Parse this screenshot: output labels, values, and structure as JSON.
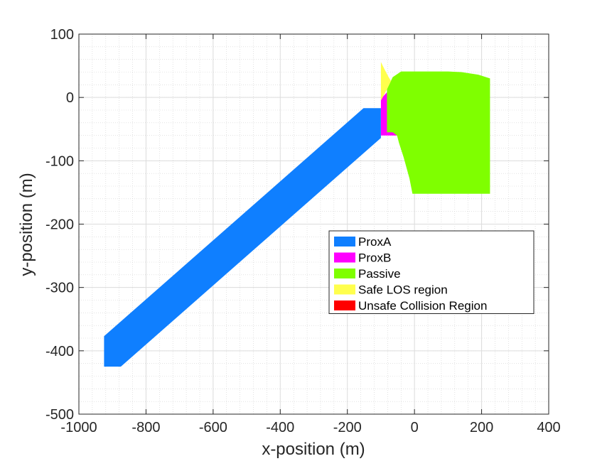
{
  "chart_data": {
    "type": "area",
    "xlabel": "x-position (m)",
    "ylabel": "y-position (m)",
    "xlim": [
      -1000,
      400
    ],
    "ylim": [
      -500,
      100
    ],
    "xticks": [
      -1000,
      -800,
      -600,
      -400,
      -200,
      0,
      200,
      400
    ],
    "yticks": [
      -500,
      -400,
      -300,
      -200,
      -100,
      0,
      100
    ],
    "xtick_labels": [
      "-1000",
      "-800",
      "-600",
      "-400",
      "-200",
      "0",
      "200",
      "400"
    ],
    "ytick_labels": [
      "-500",
      "-400",
      "-300",
      "-200",
      "-100",
      "0",
      "100"
    ],
    "grid": true,
    "minor_grid": true,
    "legend_position": "lower-right",
    "series": [
      {
        "name": "ProxA",
        "color": "#0f7fff",
        "polygon": [
          [
            -925,
            -377
          ],
          [
            -152,
            -17
          ],
          [
            -100,
            -17
          ],
          [
            -100,
            -64
          ],
          [
            -875,
            -425
          ],
          [
            -925,
            -425
          ]
        ]
      },
      {
        "name": "ProxB",
        "color": "#ff00ff",
        "polygon": [
          [
            -100,
            -60
          ],
          [
            -100,
            -2
          ],
          [
            -82,
            8
          ],
          [
            -82,
            5
          ],
          [
            -72,
            -5
          ],
          [
            -72,
            -30
          ],
          [
            -72,
            -45
          ],
          [
            -58,
            -52
          ],
          [
            -48,
            -60
          ]
        ]
      },
      {
        "name": "Passive",
        "color": "#7fff00",
        "polygon": [
          [
            -82,
            13
          ],
          [
            -65,
            32
          ],
          [
            -40,
            41
          ],
          [
            100,
            41
          ],
          [
            140,
            40
          ],
          [
            190,
            36
          ],
          [
            225,
            30
          ],
          [
            225,
            -152
          ],
          [
            -6,
            -152
          ],
          [
            -15,
            -128
          ],
          [
            -32,
            -95
          ],
          [
            -46,
            -72
          ],
          [
            -52,
            -60
          ],
          [
            -65,
            -55
          ],
          [
            -82,
            -55
          ]
        ]
      },
      {
        "name": "Safe LOS region",
        "color": "#ffff4d",
        "polygon": [
          [
            -100,
            56
          ],
          [
            -90,
            45
          ],
          [
            -78,
            33
          ],
          [
            -70,
            26
          ],
          [
            -82,
            13
          ],
          [
            -100,
            -5
          ]
        ]
      },
      {
        "name": "Unsafe Collision Region",
        "color": "#ff0000",
        "polygon": []
      }
    ]
  }
}
